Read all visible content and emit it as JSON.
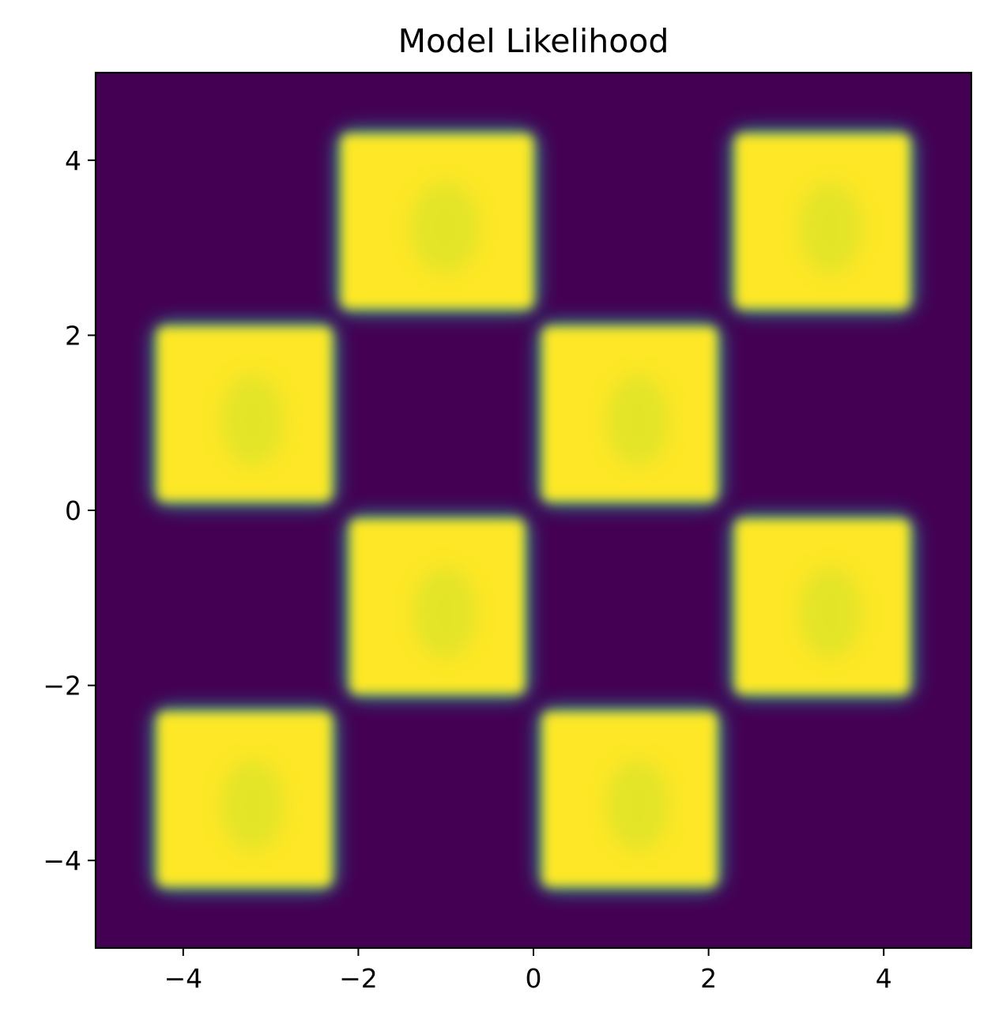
{
  "chart_data": {
    "type": "heatmap",
    "title": "Model Likelihood",
    "xlabel": "",
    "ylabel": "",
    "xlim": [
      -5,
      5
    ],
    "ylim": [
      -5,
      5
    ],
    "x_ticks": [
      -4,
      -2,
      0,
      2,
      4
    ],
    "y_ticks": [
      -4,
      -2,
      0,
      2,
      4
    ],
    "x_tick_labels": [
      "−4",
      "−2",
      "0",
      "2",
      "4"
    ],
    "y_tick_labels": [
      "−4",
      "−2",
      "0",
      "2",
      "4"
    ],
    "grid": false,
    "legend": "none",
    "colormap": "viridis",
    "colors": {
      "low": "#440154",
      "mid": "#21908c",
      "high": "#fde725",
      "inner": "#cfe22a"
    },
    "value_range": [
      0,
      1
    ],
    "high_likelihood_squares": [
      {
        "x": [
          -2.2,
          0.0
        ],
        "y": [
          2.3,
          4.3
        ]
      },
      {
        "x": [
          2.3,
          4.3
        ],
        "y": [
          2.3,
          4.3
        ]
      },
      {
        "x": [
          -4.3,
          -2.3
        ],
        "y": [
          0.1,
          2.1
        ]
      },
      {
        "x": [
          0.1,
          2.1
        ],
        "y": [
          0.1,
          2.1
        ]
      },
      {
        "x": [
          -2.1,
          -0.1
        ],
        "y": [
          -2.1,
          -0.1
        ]
      },
      {
        "x": [
          2.3,
          4.3
        ],
        "y": [
          -2.1,
          -0.1
        ]
      },
      {
        "x": [
          -4.3,
          -2.3
        ],
        "y": [
          -4.3,
          -2.3
        ]
      },
      {
        "x": [
          0.1,
          2.1
        ],
        "y": [
          -4.3,
          -2.3
        ]
      }
    ]
  }
}
